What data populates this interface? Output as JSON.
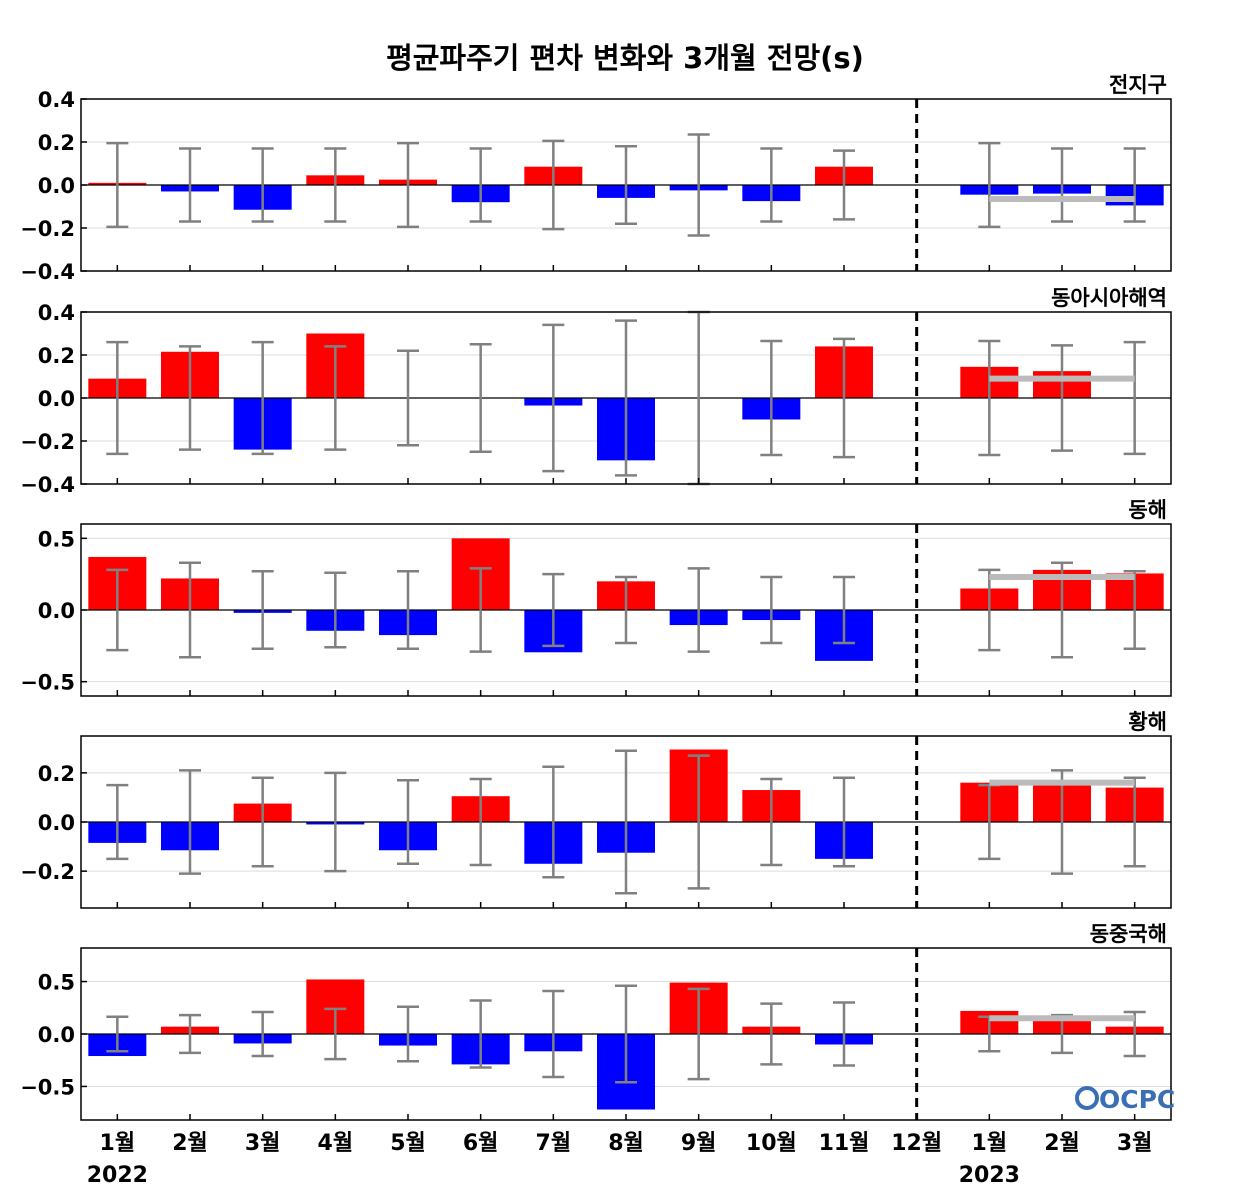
{
  "title": "평균파주기 편차 변화와 3개월 전망(s)",
  "logo": {
    "text": "OCPC",
    "color": "#3a6fb5"
  },
  "colors": {
    "positive": "#ff0000",
    "negative": "#0000ff",
    "error_bar": "#808080",
    "forecast_line": "#bbbbbb",
    "grid": "#dddddd"
  },
  "x_axis": {
    "month_labels": [
      "1월",
      "2월",
      "3월",
      "4월",
      "5월",
      "6월",
      "7월",
      "8월",
      "9월",
      "10월",
      "11월",
      "12월",
      "1월",
      "2월",
      "3월"
    ],
    "year_labels": [
      {
        "text": "2022",
        "index": 0
      },
      {
        "text": "2023",
        "index": 12
      }
    ],
    "divider_index": 11
  },
  "chart_data": [
    {
      "type": "bar",
      "title": "전지구",
      "ylim": [
        -0.4,
        0.4
      ],
      "yticks": [
        -0.4,
        -0.2,
        0.0,
        0.2,
        0.4
      ],
      "ytick_labels": [
        "−0.4",
        "−0.2",
        "0.0",
        "0.2",
        "0.4"
      ],
      "values": [
        0.01,
        -0.03,
        -0.115,
        0.045,
        0.025,
        -0.08,
        0.085,
        -0.06,
        -0.025,
        -0.075,
        0.085,
        0.0,
        -0.045,
        -0.04,
        -0.095
      ],
      "error": [
        0.195,
        0.17,
        0.17,
        0.17,
        0.195,
        0.17,
        0.205,
        0.18,
        0.235,
        0.17,
        0.16,
        0.0,
        0.195,
        0.17,
        0.17
      ],
      "forecast": {
        "from_index": 12,
        "to_index": 14,
        "value": -0.065
      }
    },
    {
      "type": "bar",
      "title": "동아시아해역",
      "ylim": [
        -0.4,
        0.4
      ],
      "yticks": [
        -0.4,
        -0.2,
        0.0,
        0.2,
        0.4
      ],
      "ytick_labels": [
        "−0.4",
        "−0.2",
        "0.0",
        "0.2",
        "0.4"
      ],
      "values": [
        0.09,
        0.215,
        -0.24,
        0.3,
        0.0,
        0.0,
        -0.035,
        -0.29,
        0.0,
        -0.1,
        0.24,
        0.0,
        0.145,
        0.125,
        0.0
      ],
      "error": [
        0.26,
        0.24,
        0.26,
        0.24,
        0.22,
        0.25,
        0.34,
        0.36,
        0.4,
        0.265,
        0.275,
        0.0,
        0.265,
        0.245,
        0.26
      ],
      "forecast": {
        "from_index": 12,
        "to_index": 14,
        "value": 0.09
      }
    },
    {
      "type": "bar",
      "title": "동해",
      "ylim": [
        -0.6,
        0.6
      ],
      "yticks": [
        -0.5,
        0.0,
        0.5
      ],
      "ytick_labels": [
        "−0.5",
        "0.0",
        "0.5"
      ],
      "values": [
        0.37,
        0.22,
        -0.02,
        -0.145,
        -0.175,
        0.5,
        -0.295,
        0.2,
        -0.105,
        -0.07,
        -0.355,
        0.0,
        0.15,
        0.28,
        0.255
      ],
      "error": [
        0.28,
        0.33,
        0.27,
        0.26,
        0.27,
        0.29,
        0.25,
        0.23,
        0.29,
        0.23,
        0.23,
        0.0,
        0.28,
        0.33,
        0.27
      ],
      "forecast": {
        "from_index": 12,
        "to_index": 14,
        "value": 0.23
      }
    },
    {
      "type": "bar",
      "title": "황해",
      "ylim": [
        -0.35,
        0.35
      ],
      "yticks": [
        -0.2,
        0.0,
        0.2
      ],
      "ytick_labels": [
        "−0.2",
        "0.0",
        "0.2"
      ],
      "values": [
        -0.085,
        -0.115,
        0.075,
        -0.01,
        -0.115,
        0.105,
        -0.17,
        -0.125,
        0.295,
        0.13,
        -0.15,
        0.0,
        0.16,
        0.15,
        0.14
      ],
      "error": [
        0.15,
        0.21,
        0.18,
        0.2,
        0.17,
        0.175,
        0.225,
        0.29,
        0.27,
        0.175,
        0.18,
        0.0,
        0.15,
        0.21,
        0.18
      ],
      "forecast": {
        "from_index": 12,
        "to_index": 14,
        "value": 0.16
      }
    },
    {
      "type": "bar",
      "title": "동중국해",
      "ylim": [
        -0.82,
        0.82
      ],
      "yticks": [
        -0.5,
        0.0,
        0.5
      ],
      "ytick_labels": [
        "−0.5",
        "0.0",
        "0.5"
      ],
      "values": [
        -0.21,
        0.07,
        -0.09,
        0.52,
        -0.11,
        -0.29,
        -0.165,
        -0.72,
        0.49,
        0.07,
        -0.1,
        0.0,
        0.22,
        0.14,
        0.07
      ],
      "error": [
        0.165,
        0.18,
        0.21,
        0.24,
        0.26,
        0.32,
        0.41,
        0.46,
        0.43,
        0.29,
        0.3,
        0.0,
        0.165,
        0.18,
        0.21
      ],
      "forecast": {
        "from_index": 12,
        "to_index": 14,
        "value": 0.15
      }
    }
  ]
}
